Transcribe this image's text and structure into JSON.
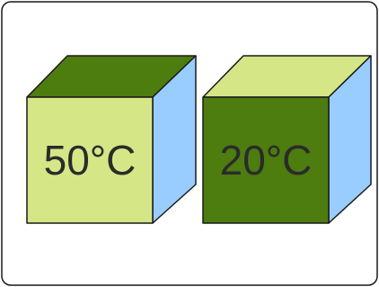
{
  "cubes": [
    {
      "label": "50°C"
    },
    {
      "label": "20°C"
    }
  ]
}
